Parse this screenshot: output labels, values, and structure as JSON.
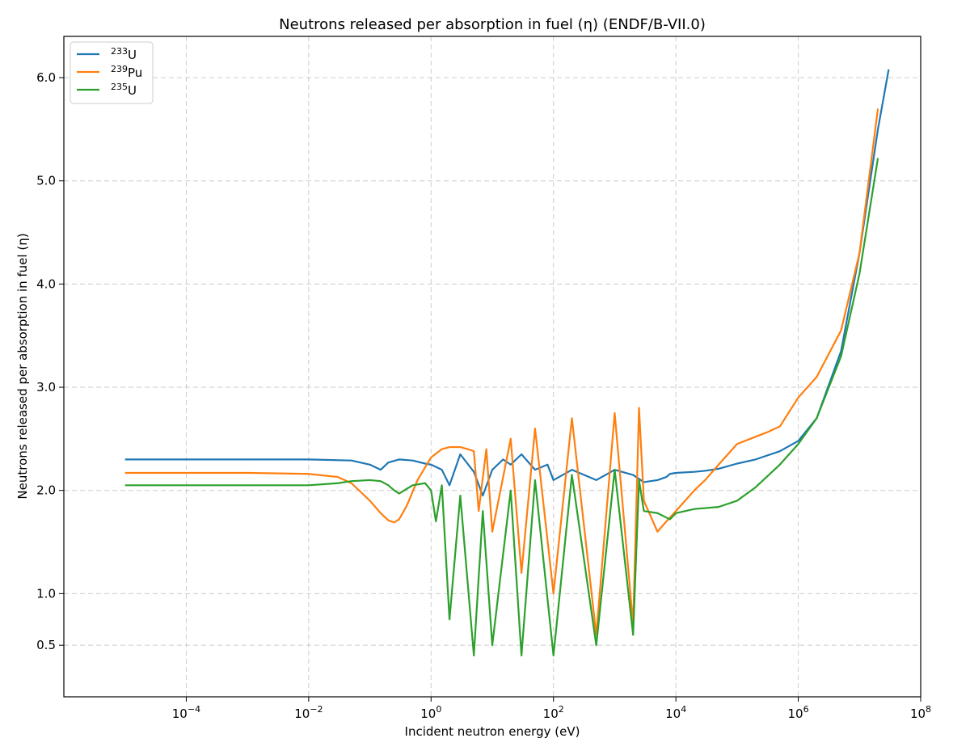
{
  "chart_data": {
    "type": "line",
    "title": "Neutrons released per absorption in fuel (η) (ENDF/B-VII.0)",
    "xlabel": "Incident neutron energy (eV)",
    "ylabel": "Neutrons released per absorption in fuel (η)",
    "xscale": "log",
    "xlim": [
      1e-06,
      100000000
    ],
    "ylim": [
      0.0,
      6.4
    ],
    "grid": true,
    "legend_position": "top-left",
    "x_ticks": [
      {
        "value": 0.0001,
        "base": "10",
        "exp": "−4"
      },
      {
        "value": 0.01,
        "base": "10",
        "exp": "−2"
      },
      {
        "value": 1,
        "base": "10",
        "exp": "0"
      },
      {
        "value": 100,
        "base": "10",
        "exp": "2"
      },
      {
        "value": 10000,
        "base": "10",
        "exp": "4"
      },
      {
        "value": 1000000,
        "base": "10",
        "exp": "6"
      },
      {
        "value": 100000000,
        "base": "10",
        "exp": "8"
      }
    ],
    "y_ticks": [
      {
        "value": 0.5,
        "label": "0.5"
      },
      {
        "value": 1.0,
        "label": "1.0"
      },
      {
        "value": 2.0,
        "label": "2.0"
      },
      {
        "value": 3.0,
        "label": "3.0"
      },
      {
        "value": 4.0,
        "label": "4.0"
      },
      {
        "value": 5.0,
        "label": "5.0"
      },
      {
        "value": 6.0,
        "label": "6.0"
      }
    ],
    "series": [
      {
        "name": "233U",
        "mass": "233",
        "element": "U",
        "color": "#1f77b4",
        "x": [
          1e-05,
          0.001,
          0.01,
          0.05,
          0.1,
          0.15,
          0.2,
          0.3,
          0.5,
          0.8,
          1.0,
          1.5,
          2,
          3,
          5,
          7,
          10,
          15,
          20,
          30,
          50,
          80,
          100,
          200,
          500,
          1000,
          2000,
          3000,
          5000,
          7000,
          8000,
          10000,
          20000,
          30000,
          50000,
          100000,
          200000,
          500000,
          1000000,
          2000000,
          5000000,
          10000000,
          20000000,
          30000000
        ],
        "values": [
          2.3,
          2.3,
          2.3,
          2.29,
          2.25,
          2.2,
          2.27,
          2.3,
          2.29,
          2.26,
          2.25,
          2.2,
          2.05,
          2.35,
          2.18,
          1.95,
          2.2,
          2.3,
          2.25,
          2.35,
          2.2,
          2.25,
          2.1,
          2.2,
          2.1,
          2.2,
          2.15,
          2.08,
          2.1,
          2.13,
          2.16,
          2.17,
          2.18,
          2.19,
          2.21,
          2.26,
          2.3,
          2.38,
          2.48,
          2.7,
          3.35,
          4.3,
          5.5,
          6.08
        ]
      },
      {
        "name": "239Pu",
        "mass": "239",
        "element": "Pu",
        "color": "#ff7f0e",
        "x": [
          1e-05,
          0.001,
          0.01,
          0.03,
          0.05,
          0.1,
          0.15,
          0.2,
          0.25,
          0.3,
          0.4,
          0.6,
          1.0,
          1.5,
          2.0,
          3.0,
          4.0,
          5.0,
          6,
          8,
          10,
          20,
          30,
          50,
          100,
          200,
          500,
          1000,
          2000,
          2500,
          3000,
          5000,
          7000,
          10000,
          20000,
          30000,
          50000,
          100000,
          200000,
          300000,
          500000,
          1000000,
          2000000,
          5000000,
          10000000,
          20000000
        ],
        "values": [
          2.17,
          2.17,
          2.16,
          2.13,
          2.07,
          1.9,
          1.78,
          1.71,
          1.69,
          1.72,
          1.85,
          2.1,
          2.32,
          2.4,
          2.42,
          2.42,
          2.4,
          2.38,
          1.8,
          2.4,
          1.6,
          2.5,
          1.2,
          2.6,
          1.0,
          2.7,
          0.6,
          2.75,
          0.7,
          2.8,
          1.9,
          1.6,
          1.7,
          1.8,
          2.0,
          2.1,
          2.25,
          2.45,
          2.52,
          2.56,
          2.62,
          2.9,
          3.1,
          3.55,
          4.3,
          5.7
        ]
      },
      {
        "name": "235U",
        "mass": "235",
        "element": "U",
        "color": "#2ca02c",
        "x": [
          1e-05,
          0.001,
          0.01,
          0.03,
          0.05,
          0.1,
          0.15,
          0.2,
          0.25,
          0.3,
          0.5,
          0.8,
          1.0,
          1.2,
          1.5,
          2.0,
          3.0,
          5.0,
          7,
          10,
          20,
          30,
          50,
          100,
          200,
          500,
          1000,
          2000,
          2500,
          3000,
          5000,
          8000,
          10000,
          20000,
          50000,
          100000,
          200000,
          500000,
          1000000,
          2000000,
          5000000,
          10000000,
          20000000
        ],
        "values": [
          2.05,
          2.05,
          2.05,
          2.07,
          2.09,
          2.1,
          2.09,
          2.05,
          2.0,
          1.97,
          2.05,
          2.07,
          2.0,
          1.7,
          2.05,
          0.75,
          1.95,
          0.4,
          1.8,
          0.5,
          2.0,
          0.4,
          2.1,
          0.4,
          2.15,
          0.5,
          2.2,
          0.6,
          2.1,
          1.8,
          1.78,
          1.72,
          1.78,
          1.82,
          1.84,
          1.9,
          2.03,
          2.25,
          2.45,
          2.7,
          3.3,
          4.1,
          5.22
        ]
      }
    ]
  }
}
